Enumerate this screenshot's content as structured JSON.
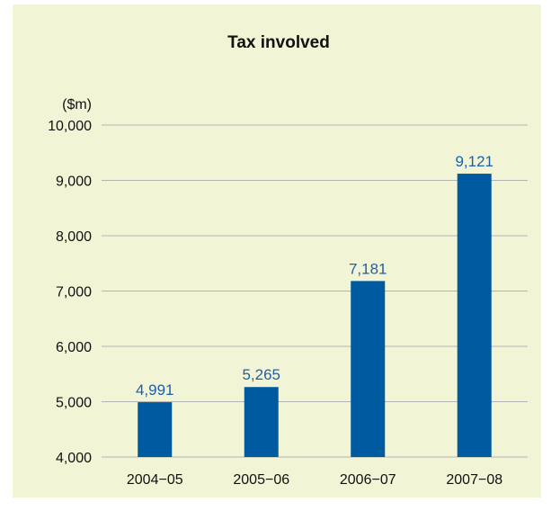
{
  "chart_data": {
    "type": "bar",
    "title": "Tax involved",
    "unit_label": "($m)",
    "categories": [
      "2004−05",
      "2005−06",
      "2006−07",
      "2007−08"
    ],
    "values": [
      4991,
      5265,
      7181,
      9121
    ],
    "data_labels": [
      "4,991",
      "5,265",
      "7,181",
      "9,121"
    ],
    "ylim": [
      4000,
      10000
    ],
    "yticks": [
      4000,
      5000,
      6000,
      7000,
      8000,
      9000,
      10000
    ],
    "ytick_labels": [
      "4,000",
      "5,000",
      "6,000",
      "7,000",
      "8,000",
      "9,000",
      "10,000"
    ],
    "grid": true,
    "legend": "none",
    "colors": {
      "bar": "#005aa0",
      "data_label": "#1f5fa8",
      "grid": "#b3b3b3",
      "background": "#f2f4d6"
    }
  }
}
